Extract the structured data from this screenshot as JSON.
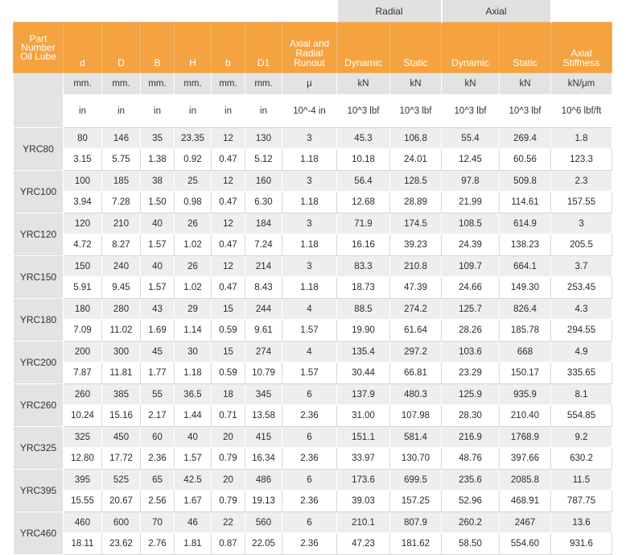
{
  "groups": {
    "radial": "Radial",
    "axial": "Axial"
  },
  "headers": [
    "Part Number Oil Lube",
    "d",
    "D",
    "B",
    "H",
    "b",
    "D1",
    "Axial and Radial Runout",
    "Dynamic",
    "Static",
    "Dynamic",
    "Static",
    "Axial Stiffness"
  ],
  "units_metric": [
    "mm.",
    "mm.",
    "mm.",
    "mm.",
    "mm.",
    "mm.",
    "μ",
    "kN",
    "kN",
    "kN",
    "kN",
    "kN/μm"
  ],
  "units_imperial": [
    "in",
    "in",
    "in",
    "in",
    "in",
    "in",
    "10^-4 in",
    "10^3 lbf",
    "10^3 lbf",
    "10^3 lbf",
    "10^3 lbf",
    "10^6 lbf/ft"
  ],
  "rows": [
    {
      "part": "YRC80",
      "metric": [
        "80",
        "146",
        "35",
        "23.35",
        "12",
        "130",
        "3",
        "45.3",
        "106.8",
        "55.4",
        "269.4",
        "1.8"
      ],
      "imperial": [
        "3.15",
        "5.75",
        "1.38",
        "0.92",
        "0.47",
        "5.12",
        "1.18",
        "10.18",
        "24.01",
        "12.45",
        "60.56",
        "123.3"
      ]
    },
    {
      "part": "YRC100",
      "metric": [
        "100",
        "185",
        "38",
        "25",
        "12",
        "160",
        "3",
        "56.4",
        "128.5",
        "97.8",
        "509.8",
        "2.3"
      ],
      "imperial": [
        "3.94",
        "7.28",
        "1.50",
        "0.98",
        "0.47",
        "6.30",
        "1.18",
        "12.68",
        "28.89",
        "21.99",
        "114.61",
        "157.55"
      ]
    },
    {
      "part": "YRC120",
      "metric": [
        "120",
        "210",
        "40",
        "26",
        "12",
        "184",
        "3",
        "71.9",
        "174.5",
        "108.5",
        "614.9",
        "3"
      ],
      "imperial": [
        "4.72",
        "8.27",
        "1.57",
        "1.02",
        "0.47",
        "7.24",
        "1.18",
        "16.16",
        "39.23",
        "24.39",
        "138.23",
        "205.5"
      ]
    },
    {
      "part": "YRC150",
      "metric": [
        "150",
        "240",
        "40",
        "26",
        "12",
        "214",
        "3",
        "83.3",
        "210.8",
        "109.7",
        "664.1",
        "3.7"
      ],
      "imperial": [
        "5.91",
        "9.45",
        "1.57",
        "1.02",
        "0.47",
        "8.43",
        "1.18",
        "18.73",
        "47.39",
        "24.66",
        "149.30",
        "253.45"
      ]
    },
    {
      "part": "YRC180",
      "metric": [
        "180",
        "280",
        "43",
        "29",
        "15",
        "244",
        "4",
        "88.5",
        "274.2",
        "125.7",
        "826.4",
        "4.3"
      ],
      "imperial": [
        "7.09",
        "11.02",
        "1.69",
        "1.14",
        "0.59",
        "9.61",
        "1.57",
        "19.90",
        "61.64",
        "28.26",
        "185.78",
        "294.55"
      ]
    },
    {
      "part": "YRC200",
      "metric": [
        "200",
        "300",
        "45",
        "30",
        "15",
        "274",
        "4",
        "135.4",
        "297.2",
        "103.6",
        "668",
        "4.9"
      ],
      "imperial": [
        "7.87",
        "11.81",
        "1.77",
        "1.18",
        "0.59",
        "10.79",
        "1.57",
        "30.44",
        "66.81",
        "23.29",
        "150.17",
        "335.65"
      ]
    },
    {
      "part": "YRC260",
      "metric": [
        "260",
        "385",
        "55",
        "36.5",
        "18",
        "345",
        "6",
        "137.9",
        "480.3",
        "125.9",
        "935.9",
        "8.1"
      ],
      "imperial": [
        "10.24",
        "15.16",
        "2.17",
        "1.44",
        "0.71",
        "13.58",
        "2.36",
        "31.00",
        "107.98",
        "28.30",
        "210.40",
        "554.85"
      ]
    },
    {
      "part": "YRC325",
      "metric": [
        "325",
        "450",
        "60",
        "40",
        "20",
        "415",
        "6",
        "151.1",
        "581.4",
        "216.9",
        "1768.9",
        "9.2"
      ],
      "imperial": [
        "12.80",
        "17.72",
        "2.36",
        "1.57",
        "0.79",
        "16.34",
        "2.36",
        "33.97",
        "130.70",
        "48.76",
        "397.66",
        "630.2"
      ]
    },
    {
      "part": "YRC395",
      "metric": [
        "395",
        "525",
        "65",
        "42.5",
        "20",
        "486",
        "6",
        "173.6",
        "699.5",
        "235.6",
        "2085.8",
        "11.5"
      ],
      "imperial": [
        "15.55",
        "20.67",
        "2.56",
        "1.67",
        "0.79",
        "19.13",
        "2.36",
        "39.03",
        "157.25",
        "52.96",
        "468.91",
        "787.75"
      ]
    },
    {
      "part": "YRC460",
      "metric": [
        "460",
        "600",
        "70",
        "46",
        "22",
        "560",
        "6",
        "210.1",
        "807.9",
        "260.2",
        "2467",
        "13.6"
      ],
      "imperial": [
        "18.11",
        "23.62",
        "2.76",
        "1.81",
        "0.87",
        "22.05",
        "2.36",
        "47.23",
        "181.62",
        "58.50",
        "554.60",
        "931.6"
      ]
    }
  ]
}
